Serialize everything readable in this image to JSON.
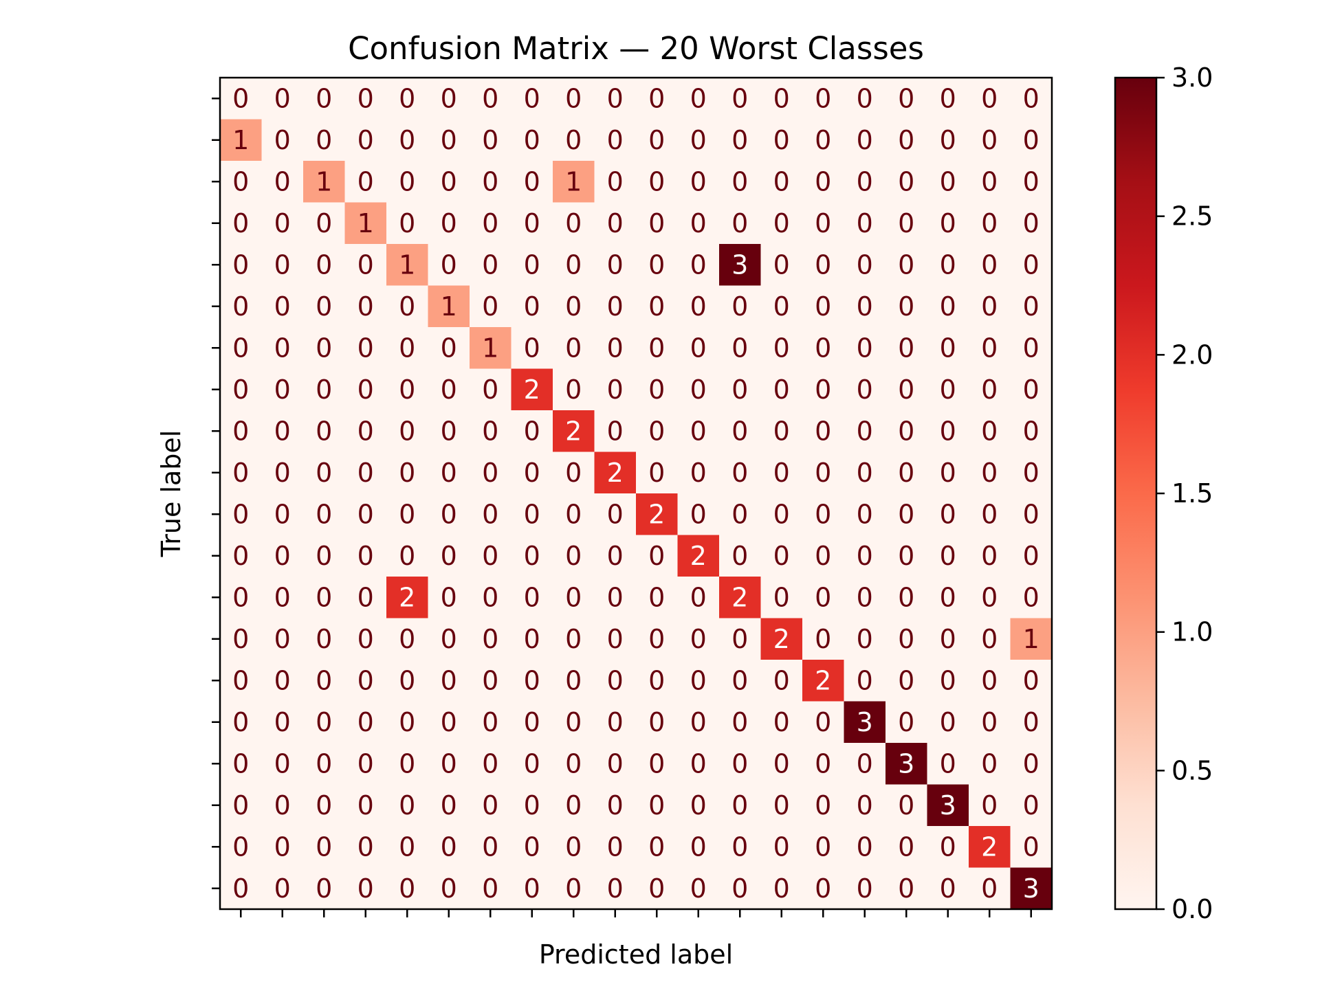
{
  "chart_data": {
    "type": "heatmap",
    "title": "Confusion Matrix — 20 Worst Classes",
    "xlabel": "Predicted label",
    "ylabel": "True label",
    "x_tick_labels": [],
    "y_tick_labels": [],
    "colormap": "Reds",
    "color_range": [
      0,
      3
    ],
    "colorbar_ticks": [
      "0.0",
      "0.5",
      "1.0",
      "1.5",
      "2.0",
      "2.5",
      "3.0"
    ],
    "grid": false,
    "matrix": [
      [
        0,
        0,
        0,
        0,
        0,
        0,
        0,
        0,
        0,
        0,
        0,
        0,
        0,
        0,
        0,
        0,
        0,
        0,
        0,
        0
      ],
      [
        1,
        0,
        0,
        0,
        0,
        0,
        0,
        0,
        0,
        0,
        0,
        0,
        0,
        0,
        0,
        0,
        0,
        0,
        0,
        0
      ],
      [
        0,
        0,
        1,
        0,
        0,
        0,
        0,
        0,
        1,
        0,
        0,
        0,
        0,
        0,
        0,
        0,
        0,
        0,
        0,
        0
      ],
      [
        0,
        0,
        0,
        1,
        0,
        0,
        0,
        0,
        0,
        0,
        0,
        0,
        0,
        0,
        0,
        0,
        0,
        0,
        0,
        0
      ],
      [
        0,
        0,
        0,
        0,
        1,
        0,
        0,
        0,
        0,
        0,
        0,
        0,
        3,
        0,
        0,
        0,
        0,
        0,
        0,
        0
      ],
      [
        0,
        0,
        0,
        0,
        0,
        1,
        0,
        0,
        0,
        0,
        0,
        0,
        0,
        0,
        0,
        0,
        0,
        0,
        0,
        0
      ],
      [
        0,
        0,
        0,
        0,
        0,
        0,
        1,
        0,
        0,
        0,
        0,
        0,
        0,
        0,
        0,
        0,
        0,
        0,
        0,
        0
      ],
      [
        0,
        0,
        0,
        0,
        0,
        0,
        0,
        2,
        0,
        0,
        0,
        0,
        0,
        0,
        0,
        0,
        0,
        0,
        0,
        0
      ],
      [
        0,
        0,
        0,
        0,
        0,
        0,
        0,
        0,
        2,
        0,
        0,
        0,
        0,
        0,
        0,
        0,
        0,
        0,
        0,
        0
      ],
      [
        0,
        0,
        0,
        0,
        0,
        0,
        0,
        0,
        0,
        2,
        0,
        0,
        0,
        0,
        0,
        0,
        0,
        0,
        0,
        0
      ],
      [
        0,
        0,
        0,
        0,
        0,
        0,
        0,
        0,
        0,
        0,
        2,
        0,
        0,
        0,
        0,
        0,
        0,
        0,
        0,
        0
      ],
      [
        0,
        0,
        0,
        0,
        0,
        0,
        0,
        0,
        0,
        0,
        0,
        2,
        0,
        0,
        0,
        0,
        0,
        0,
        0,
        0
      ],
      [
        0,
        0,
        0,
        0,
        2,
        0,
        0,
        0,
        0,
        0,
        0,
        0,
        2,
        0,
        0,
        0,
        0,
        0,
        0,
        0
      ],
      [
        0,
        0,
        0,
        0,
        0,
        0,
        0,
        0,
        0,
        0,
        0,
        0,
        0,
        2,
        0,
        0,
        0,
        0,
        0,
        1
      ],
      [
        0,
        0,
        0,
        0,
        0,
        0,
        0,
        0,
        0,
        0,
        0,
        0,
        0,
        0,
        2,
        0,
        0,
        0,
        0,
        0
      ],
      [
        0,
        0,
        0,
        0,
        0,
        0,
        0,
        0,
        0,
        0,
        0,
        0,
        0,
        0,
        0,
        3,
        0,
        0,
        0,
        0
      ],
      [
        0,
        0,
        0,
        0,
        0,
        0,
        0,
        0,
        0,
        0,
        0,
        0,
        0,
        0,
        0,
        0,
        3,
        0,
        0,
        0
      ],
      [
        0,
        0,
        0,
        0,
        0,
        0,
        0,
        0,
        0,
        0,
        0,
        0,
        0,
        0,
        0,
        0,
        0,
        3,
        0,
        0
      ],
      [
        0,
        0,
        0,
        0,
        0,
        0,
        0,
        0,
        0,
        0,
        0,
        0,
        0,
        0,
        0,
        0,
        0,
        0,
        2,
        0
      ],
      [
        0,
        0,
        0,
        0,
        0,
        0,
        0,
        0,
        0,
        0,
        0,
        0,
        0,
        0,
        0,
        0,
        0,
        0,
        0,
        3
      ]
    ],
    "colors": {
      "low_text": "#67000d",
      "high_text": "#ffffff",
      "stops": [
        "#fff5f0",
        "#fee0d2",
        "#fcbba1",
        "#fc9272",
        "#fb6a4a",
        "#ef3b2c",
        "#cb181d",
        "#a50f15",
        "#67000d"
      ]
    }
  }
}
